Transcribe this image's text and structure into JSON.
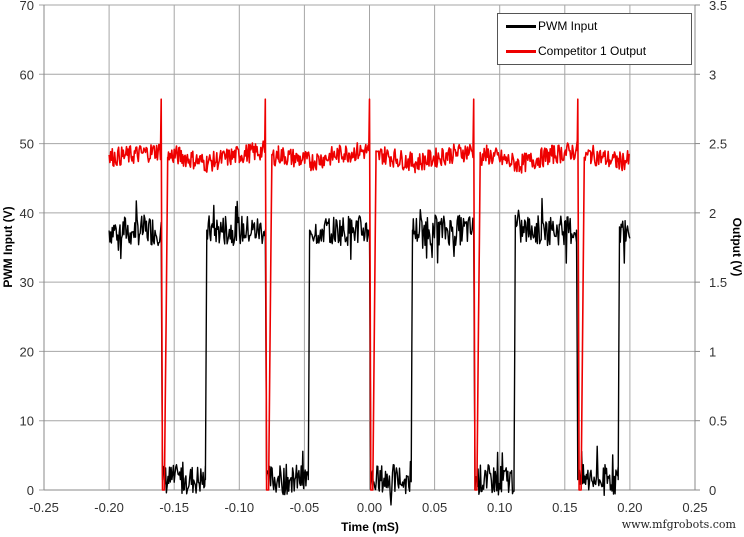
{
  "chart_data": {
    "type": "line",
    "title": "",
    "xlabel": "Time (mS)",
    "ylabel": "PWM Input (V)",
    "y2label": "Output (V)",
    "xlim": [
      -0.25,
      0.25
    ],
    "ylim": [
      0,
      70
    ],
    "y2lim": [
      0,
      3.5
    ],
    "xticks": [
      "-0.25",
      "-0.20",
      "-0.15",
      "-0.10",
      "-0.05",
      "0.00",
      "0.05",
      "0.10",
      "0.15",
      "0.20",
      "0.25"
    ],
    "yticks": [
      "0",
      "10",
      "20",
      "30",
      "40",
      "50",
      "60",
      "70"
    ],
    "y2ticks": [
      "0",
      "0.5",
      "1",
      "1.5",
      "2",
      "2.5",
      "3",
      "3.5"
    ],
    "grid": true,
    "legend_position": "upper right",
    "series": [
      {
        "name": "PWM Input",
        "axis": "left",
        "color": "#000000",
        "description": "Square wave ~0-3 V low / 35-40 V high, period 0.08 mS, high from ~-0.2 to -0.16, low ~-0.16 to -0.126",
        "x": [
          -0.2,
          -0.16,
          -0.159,
          -0.126,
          -0.125,
          -0.08,
          -0.079,
          -0.047,
          -0.046,
          0.0,
          0.001,
          0.032,
          0.033,
          0.08,
          0.081,
          0.111,
          0.112,
          0.159,
          0.16,
          0.191,
          0.192,
          0.2
        ],
        "values": [
          37.5,
          37.5,
          1.5,
          1.5,
          37.5,
          37.5,
          1.5,
          1.5,
          37.5,
          37.5,
          1.5,
          1.5,
          37.5,
          37.5,
          1.5,
          1.5,
          37.5,
          37.5,
          1.5,
          1.5,
          37.5,
          37.5
        ]
      },
      {
        "name": "Competitor 1 Output",
        "axis": "right",
        "color": "#ee0000",
        "description": "Output ~2.35-2.45 V with spike to ~2.8 V then drop to 0 at each PWM falling edge",
        "x": [
          -0.2,
          -0.18,
          -0.1605,
          -0.16,
          -0.159,
          -0.1575,
          -0.155,
          -0.15,
          -0.125,
          -0.1,
          -0.0805,
          -0.08,
          -0.079,
          -0.0775,
          -0.075,
          -0.07,
          -0.045,
          -0.02,
          -0.0005,
          0.0,
          0.001,
          0.0025,
          0.005,
          0.01,
          0.035,
          0.06,
          0.0795,
          0.08,
          0.081,
          0.0825,
          0.085,
          0.09,
          0.115,
          0.14,
          0.1595,
          0.16,
          0.161,
          0.1625,
          0.165,
          0.17,
          0.19,
          0.2
        ],
        "values": [
          2.4,
          2.42,
          2.45,
          2.82,
          0.0,
          0.0,
          2.4,
          2.42,
          2.36,
          2.42,
          2.45,
          2.82,
          0.0,
          0.0,
          2.4,
          2.42,
          2.37,
          2.43,
          2.45,
          2.82,
          0.0,
          0.0,
          2.4,
          2.42,
          2.36,
          2.42,
          2.45,
          2.82,
          0.0,
          0.0,
          2.4,
          2.42,
          2.35,
          2.42,
          2.45,
          2.82,
          0.0,
          0.0,
          2.4,
          2.42,
          2.37,
          2.38
        ]
      }
    ]
  },
  "legend": {
    "items": [
      {
        "label": "PWM Input",
        "color": "#000000"
      },
      {
        "label": "Competitor 1 Output",
        "color": "#ee0000"
      }
    ]
  },
  "watermark": "www.mfgrobots.com"
}
